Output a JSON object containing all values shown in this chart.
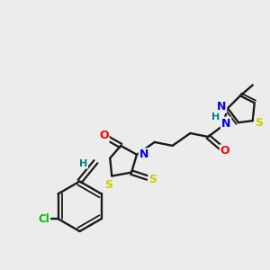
{
  "background_color": "#ececec",
  "bond_color": "#1a1a1a",
  "atom_colors": {
    "N": "#0000ee",
    "O": "#ff0000",
    "S": "#cccc00",
    "Cl": "#00bb00",
    "H": "#008080",
    "C": "#1a1a1a"
  },
  "figsize": [
    3.0,
    3.0
  ],
  "dpi": 100
}
